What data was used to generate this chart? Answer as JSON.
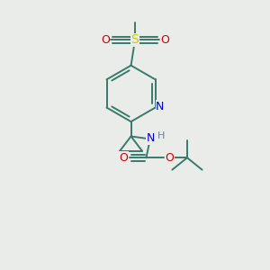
{
  "background_color": "#eaecea",
  "atom_colors": {
    "C": "#3a7a6a",
    "N": "#0000cc",
    "O": "#cc0000",
    "S": "#cccc00",
    "H": "#708090"
  },
  "bond_color": "#3a7a6a",
  "figsize": [
    3.0,
    3.0
  ],
  "dpi": 100,
  "bond_lw": 1.4
}
